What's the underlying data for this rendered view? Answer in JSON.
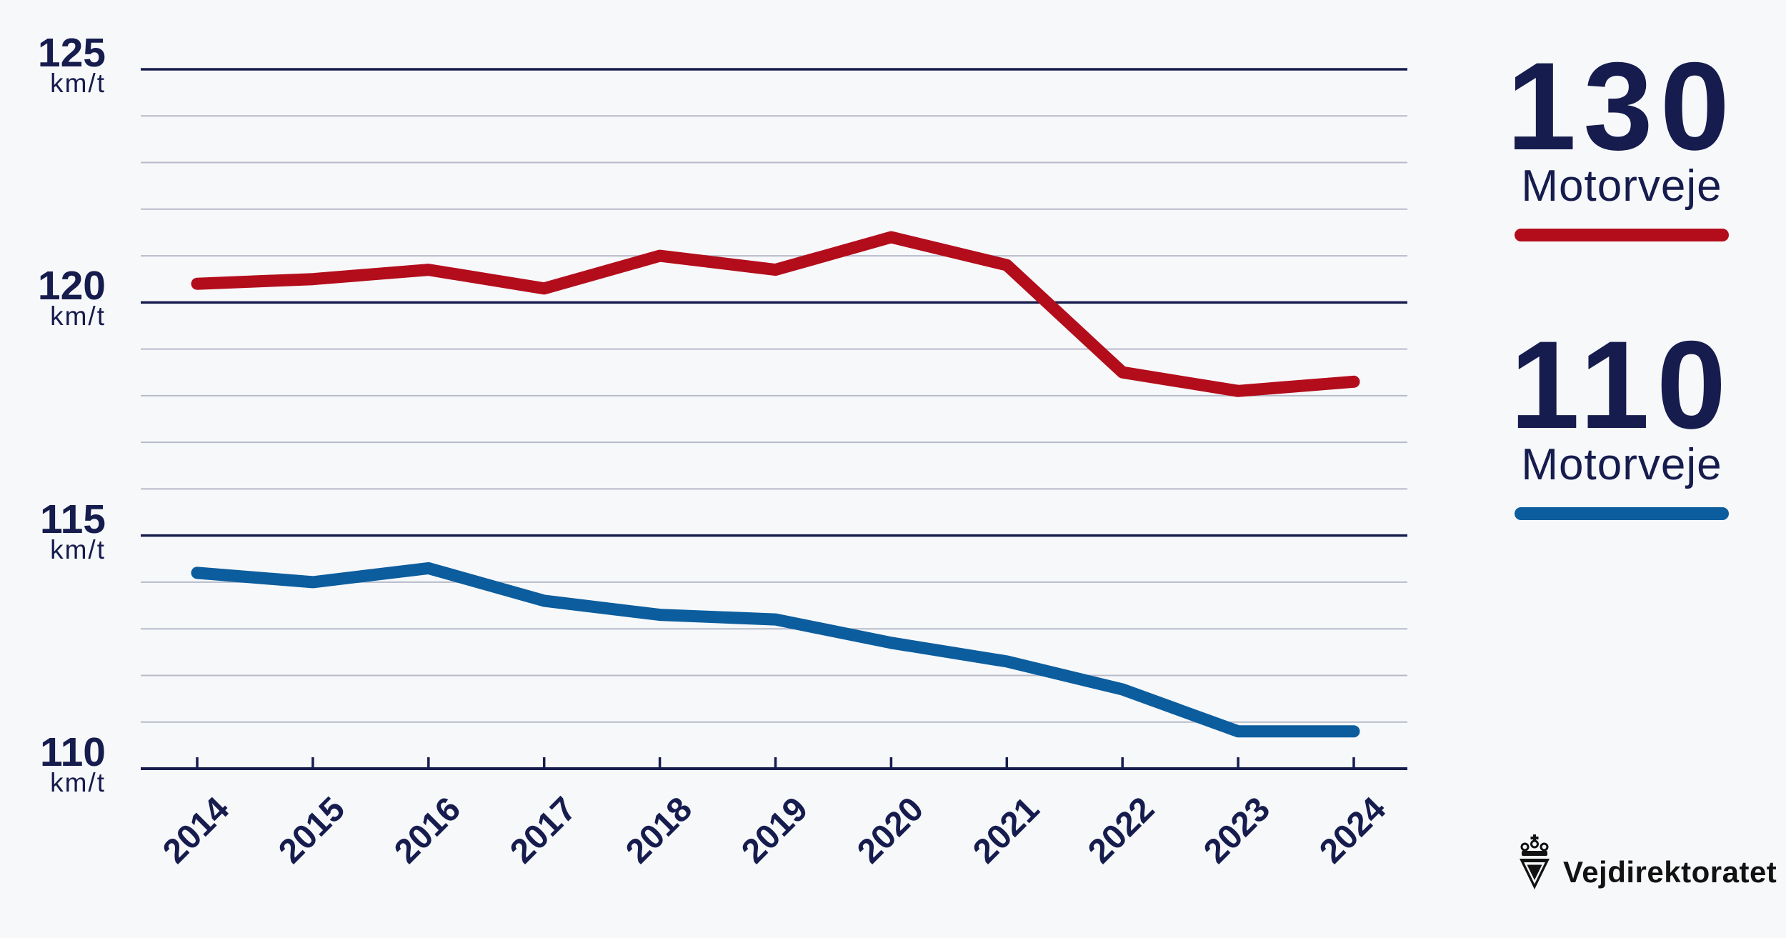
{
  "theme": {
    "background": "#f7f8fa",
    "navy": "#161c4d",
    "grid_minor": "#b7bac9",
    "red": "#b30d1c",
    "blue": "#0b5d9e",
    "logo_black": "#121212"
  },
  "chart_data": {
    "type": "line",
    "title": "",
    "categories": [
      "2014",
      "2015",
      "2016",
      "2017",
      "2018",
      "2019",
      "2020",
      "2021",
      "2022",
      "2023",
      "2024"
    ],
    "series": [
      {
        "name": "130 Motorveje",
        "color": "#b30d1c",
        "values": [
          120.4,
          120.5,
          120.7,
          120.3,
          121.0,
          120.7,
          121.4,
          120.8,
          118.5,
          118.1,
          118.3
        ]
      },
      {
        "name": "110 Motorveje",
        "color": "#0b5d9e",
        "values": [
          114.2,
          114.0,
          114.3,
          113.6,
          113.3,
          113.2,
          112.7,
          112.3,
          111.7,
          110.8,
          110.8
        ]
      }
    ],
    "y_unit": "km/t",
    "y_major_ticks": [
      125,
      120,
      115,
      110
    ],
    "y_minor_step": 1,
    "ylim": [
      110,
      125
    ],
    "xlabel": "",
    "ylabel": "km/t",
    "grid": "horizontal-only",
    "legend_position": "right"
  },
  "legend": [
    {
      "value": "130",
      "label": "Motorveje",
      "color": "#b30d1c"
    },
    {
      "value": "110",
      "label": "Motorveje",
      "color": "#0b5d9e"
    }
  ],
  "branding": {
    "logo_text": "Vejdirektoratet"
  }
}
